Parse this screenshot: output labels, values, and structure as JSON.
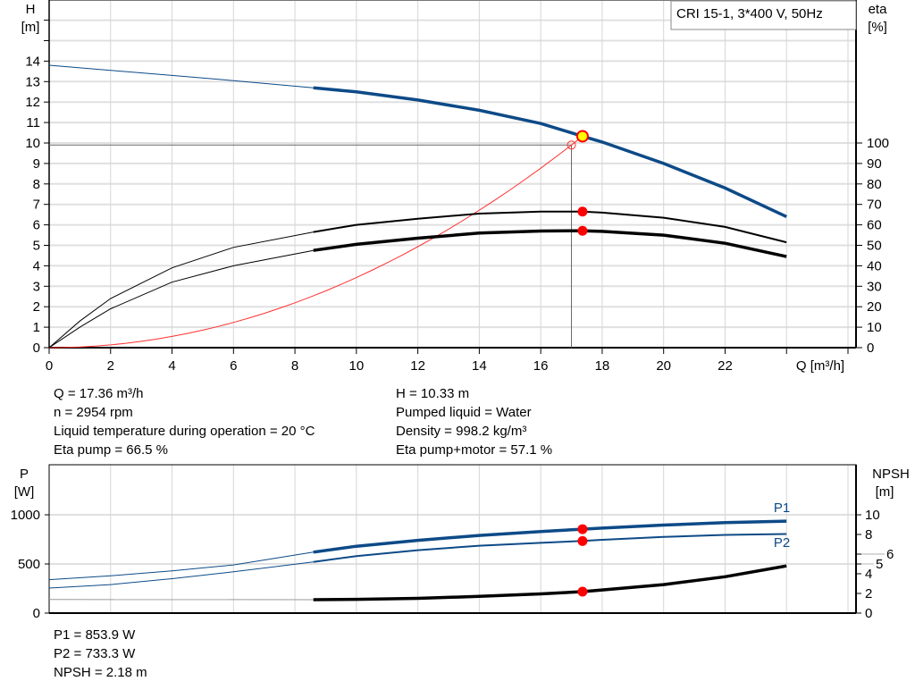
{
  "chart_data": [
    {
      "type": "line",
      "title": "CRI 15-1, 3*400 V, 50Hz",
      "xlabel": "Q [m³/h]",
      "xlim": [
        0,
        26
      ],
      "xticks": [
        0,
        2,
        4,
        6,
        8,
        10,
        12,
        14,
        16,
        18,
        20,
        22
      ],
      "ylabel": "H",
      "yunit": "[m]",
      "ylim": [
        0,
        17
      ],
      "yticks": [
        0,
        1,
        2,
        3,
        4,
        5,
        6,
        7,
        8,
        9,
        10,
        11,
        12,
        13,
        14
      ],
      "y2label": "eta",
      "y2unit": "[%]",
      "y2lim": [
        0,
        170
      ],
      "y2ticks": [
        0,
        10,
        20,
        30,
        40,
        50,
        60,
        70,
        80,
        90,
        100
      ],
      "grid": true,
      "thick_from_q": 8.6,
      "series": [
        {
          "id": "H",
          "axis": "left",
          "color": "#0d4a87",
          "x": [
            0,
            2,
            4,
            6,
            8.6,
            10,
            12,
            14,
            16,
            17.36,
            18,
            20,
            22,
            24
          ],
          "y": [
            13.8,
            13.55,
            13.3,
            13.05,
            12.7,
            12.5,
            12.1,
            11.6,
            10.95,
            10.33,
            10.05,
            9.0,
            7.8,
            6.4
          ]
        },
        {
          "id": "eta_pump",
          "axis": "right",
          "color": "#000000",
          "x": [
            0,
            1,
            2,
            4,
            6,
            8.6,
            10,
            12,
            14,
            16,
            17.36,
            18,
            20,
            22,
            24
          ],
          "y": [
            0,
            13,
            24,
            39,
            49,
            56.5,
            60,
            63,
            65.5,
            66.5,
            66.5,
            66,
            63.5,
            59,
            51.5
          ]
        },
        {
          "id": "eta_pump_motor",
          "axis": "right",
          "color": "#000000",
          "x": [
            0,
            1,
            2,
            4,
            6,
            8.6,
            10,
            12,
            14,
            16,
            17.36,
            18,
            20,
            22,
            24
          ],
          "y": [
            0,
            10,
            19,
            32,
            40,
            47.5,
            50.5,
            53.5,
            56,
            57,
            57.1,
            56.8,
            55,
            51,
            44.5
          ]
        },
        {
          "id": "system",
          "axis": "left",
          "color": "#ff3030",
          "curve": "quadratic",
          "through": [
            17,
            9.9
          ]
        }
      ],
      "operating_point": {
        "Q": 17.36,
        "H": 10.33,
        "eta_pump": 66.5,
        "eta_pump_motor": 57.1
      },
      "duty_point": {
        "Q": 17,
        "H": 9.9
      }
    },
    {
      "type": "line",
      "xlim": [
        0,
        26
      ],
      "ylabel": "P",
      "yunit": "[W]",
      "ylim": [
        0,
        1510
      ],
      "yticks": [
        0,
        500,
        1000
      ],
      "y2label": "NPSH",
      "y2unit": "[m]",
      "y2lim": [
        0,
        15.1
      ],
      "y2ticks": [
        0,
        2,
        4,
        5,
        6,
        8,
        10
      ],
      "grid": true,
      "series": [
        {
          "id": "P1",
          "name": "P1",
          "axis": "left",
          "color": "#0d4a87",
          "x": [
            0,
            2,
            4,
            6,
            8.6,
            10,
            12,
            14,
            16,
            17.36,
            18,
            20,
            22,
            24
          ],
          "y": [
            340,
            380,
            430,
            490,
            620,
            680,
            740,
            790,
            830,
            853.9,
            865,
            895,
            920,
            935
          ]
        },
        {
          "id": "P2",
          "name": "P2",
          "axis": "left",
          "color": "#0d4a87",
          "x": [
            0,
            2,
            4,
            6,
            8.6,
            10,
            12,
            14,
            16,
            17.36,
            18,
            20,
            22,
            24
          ],
          "y": [
            255,
            290,
            350,
            420,
            520,
            580,
            640,
            685,
            715,
            733.3,
            745,
            775,
            795,
            805
          ]
        },
        {
          "id": "NPSH",
          "axis": "right",
          "color": "#000000",
          "x": [
            0,
            8.6,
            10,
            12,
            14,
            16,
            17.36,
            18,
            20,
            22,
            24
          ],
          "y": [
            1.38,
            1.36,
            1.4,
            1.5,
            1.7,
            1.95,
            2.18,
            2.35,
            2.9,
            3.7,
            4.8
          ]
        }
      ],
      "operating_point": {
        "Q": 17.36,
        "P1": 853.9,
        "P2": 733.3,
        "NPSH": 2.18
      }
    }
  ],
  "info": {
    "left": [
      "Q = 17.36 m³/h",
      "n = 2954 rpm",
      "Liquid temperature during operation = 20 °C",
      "Eta pump = 66.5 %"
    ],
    "right": [
      "H = 10.33 m",
      "Pumped liquid = Water",
      "Density = 998.2 kg/m³",
      "Eta pump+motor = 57.1 %"
    ],
    "bottom": [
      "P1 = 853.9 W",
      "P2 = 733.3 W",
      "NPSH = 2.18 m"
    ]
  }
}
